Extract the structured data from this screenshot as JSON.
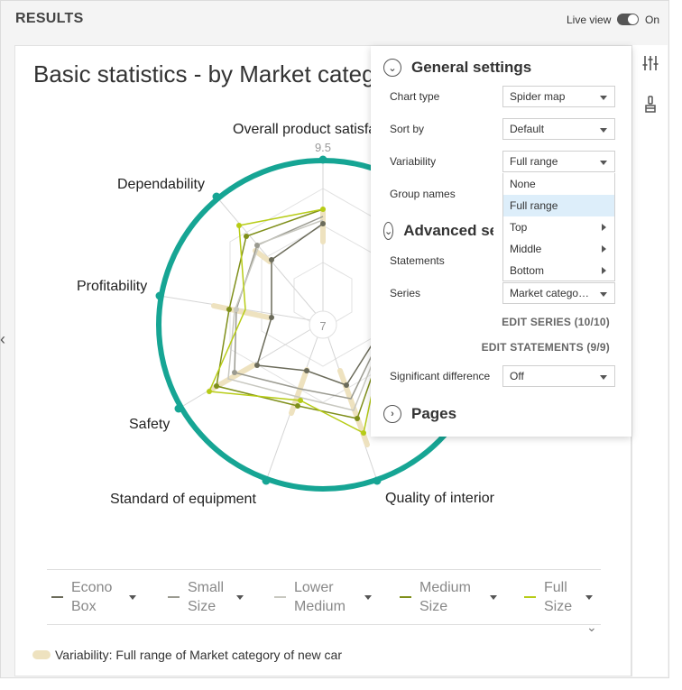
{
  "header": {
    "title": "RESULTS",
    "live_view_label": "Live view",
    "toggle_state": "On"
  },
  "chart": {
    "title": "Basic statistics - by Market category of new car",
    "center_tick": "7",
    "outer_tick": "9.5",
    "axes": [
      "Overall product satisfaction",
      "Dependability",
      "Profitability",
      "Safety",
      "Standard of equipment",
      "Quality of interior"
    ],
    "legend": [
      {
        "label": "Econo Box",
        "color": "#6b6b5a"
      },
      {
        "label": "Small Size",
        "color": "#9a9a90"
      },
      {
        "label": "Lower Medium",
        "color": "#c8c8c0"
      },
      {
        "label": "Medium Size",
        "color": "#7f8f1a"
      },
      {
        "label": "Full Size",
        "color": "#b7cc16"
      }
    ],
    "variability_note": "Variability: Full range of Market category of new car"
  },
  "panel": {
    "general_settings": "General settings",
    "advanced_settings": "Advanced settings",
    "pages": "Pages",
    "chart_type_label": "Chart type",
    "chart_type_value": "Spider map",
    "sort_by_label": "Sort by",
    "sort_by_value": "Default",
    "variability_label": "Variability",
    "variability_value": "Full range",
    "group_names_label": "Group names",
    "variability_options": [
      "None",
      "Full range",
      "Top",
      "Middle",
      "Bottom"
    ],
    "statements_label": "Statements",
    "series_label": "Series",
    "series_value": "Market category of new car",
    "edit_series": "EDIT SERIES (10/10)",
    "edit_statements": "EDIT STATEMENTS (9/9)",
    "significant_difference_label": "Significant difference",
    "significant_difference_value": "Off"
  },
  "colors": {
    "accent_ring": "#16a594",
    "variability_band": "#eee2bf"
  }
}
